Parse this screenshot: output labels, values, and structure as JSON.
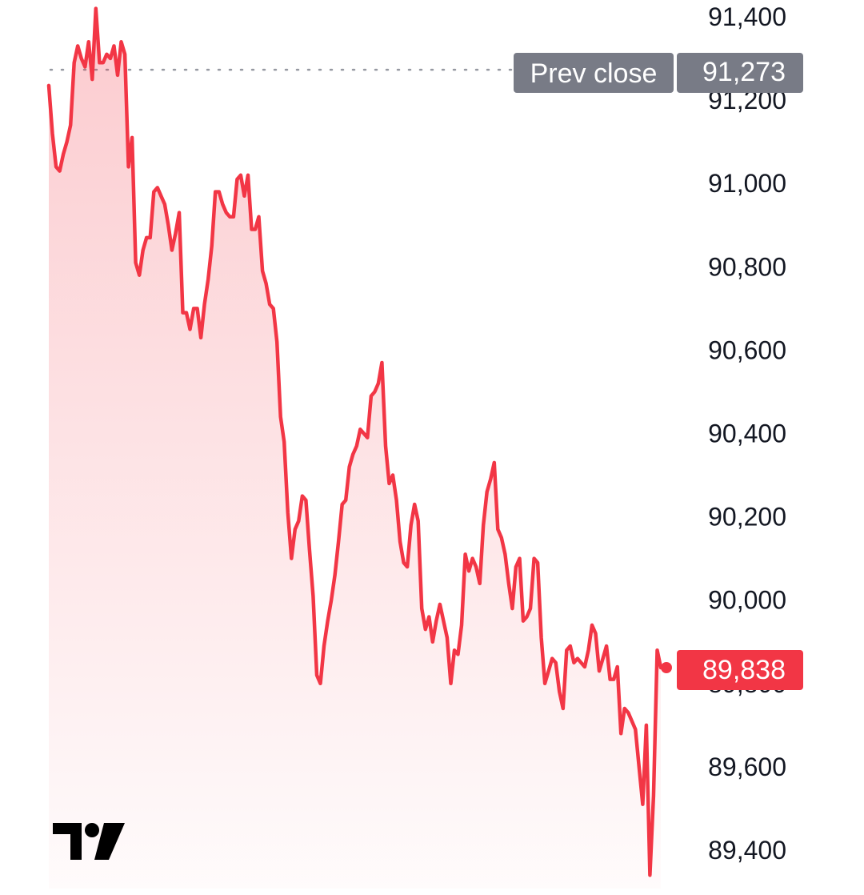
{
  "chart_data": {
    "type": "area",
    "y_axis_position": "right",
    "ylim": [
      89300,
      91440
    ],
    "y_ticks": [
      "91,400",
      "91,200",
      "91,000",
      "90,800",
      "90,600",
      "90,400",
      "90,200",
      "90,000",
      "89,800",
      "89,600",
      "89,400"
    ],
    "y_tick_values": [
      91400,
      91200,
      91000,
      90800,
      90600,
      90400,
      90200,
      90000,
      89800,
      89600,
      89400
    ],
    "series": [
      {
        "color": "#f23645",
        "values": [
          91235,
          91120,
          91040,
          91030,
          91070,
          91100,
          91140,
          91290,
          91330,
          91300,
          91280,
          91340,
          91250,
          91420,
          91290,
          91290,
          91310,
          91300,
          91330,
          91260,
          91340,
          91310,
          91040,
          91110,
          90810,
          90780,
          90840,
          90870,
          90870,
          90980,
          90990,
          90970,
          90950,
          90900,
          90840,
          90880,
          90930,
          90690,
          90690,
          90650,
          90700,
          90700,
          90630,
          90710,
          90770,
          90850,
          90980,
          90980,
          90950,
          90930,
          90920,
          90920,
          91010,
          91020,
          90970,
          91020,
          90890,
          90890,
          90920,
          90790,
          90760,
          90710,
          90700,
          90620,
          90440,
          90380,
          90210,
          90100,
          90170,
          90190,
          90250,
          90240,
          90120,
          90010,
          89820,
          89800,
          89890,
          89950,
          90000,
          90060,
          90140,
          90230,
          90240,
          90320,
          90350,
          90370,
          90410,
          90400,
          90390,
          90490,
          90500,
          90520,
          90570,
          90370,
          90280,
          90300,
          90240,
          90140,
          90090,
          90080,
          90180,
          90230,
          90190,
          89980,
          89930,
          89960,
          89900,
          89950,
          89990,
          89950,
          89910,
          89800,
          89880,
          89870,
          89940,
          90110,
          90070,
          90100,
          90080,
          90040,
          90180,
          90260,
          90290,
          90330,
          90170,
          90150,
          90110,
          90040,
          89980,
          90080,
          90100,
          89950,
          89960,
          89980,
          90100,
          90090,
          89910,
          89800,
          89830,
          89860,
          89850,
          89780,
          89740,
          89880,
          89890,
          89850,
          89860,
          89850,
          89840,
          89880,
          89940,
          89920,
          89830,
          89860,
          89890,
          89810,
          89810,
          89840,
          89680,
          89740,
          89730,
          89710,
          89690,
          89600,
          89510,
          89700,
          89340,
          89530,
          89880,
          89838
        ]
      }
    ],
    "reference_line": {
      "label": "Prev close",
      "value": 91273,
      "value_label": "91,273"
    },
    "last_value": {
      "value": 89838,
      "label": "89,838"
    },
    "grid": false,
    "legend": "none"
  },
  "colors": {
    "line": "#f23645",
    "tag_prev_close": "#787b86",
    "tag_last_price": "#f23645",
    "text": "#131722"
  },
  "logo": {
    "icon": "tradingview-logo-icon"
  }
}
